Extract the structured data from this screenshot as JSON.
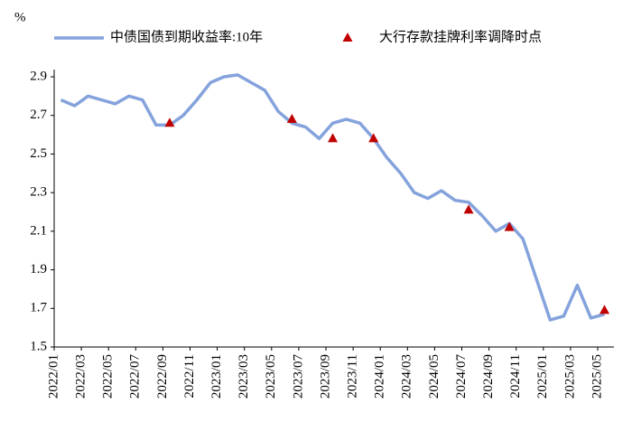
{
  "chart_data": {
    "type": "line",
    "y_label": "%",
    "x": [
      "2022/01",
      "2022/02",
      "2022/03",
      "2022/04",
      "2022/05",
      "2022/06",
      "2022/07",
      "2022/08",
      "2022/09",
      "2022/10",
      "2022/11",
      "2022/12",
      "2023/01",
      "2023/02",
      "2023/03",
      "2023/04",
      "2023/05",
      "2023/06",
      "2023/07",
      "2023/08",
      "2023/09",
      "2023/10",
      "2023/11",
      "2023/12",
      "2024/01",
      "2024/02",
      "2024/03",
      "2024/04",
      "2024/05",
      "2024/06",
      "2024/07",
      "2024/08",
      "2024/09",
      "2024/10",
      "2024/11",
      "2024/12",
      "2025/01",
      "2025/02",
      "2025/03",
      "2025/04",
      "2025/05"
    ],
    "series": [
      {
        "name": "中债国债到期收益率:10年",
        "color": "#84a2dc",
        "values": [
          2.78,
          2.75,
          2.8,
          2.78,
          2.76,
          2.8,
          2.78,
          2.65,
          2.65,
          2.7,
          2.78,
          2.87,
          2.9,
          2.91,
          2.87,
          2.83,
          2.72,
          2.66,
          2.64,
          2.58,
          2.66,
          2.68,
          2.66,
          2.58,
          2.48,
          2.4,
          2.3,
          2.27,
          2.31,
          2.26,
          2.25,
          2.18,
          2.1,
          2.14,
          2.06,
          1.85,
          1.64,
          1.66,
          1.82,
          1.65,
          1.67
        ]
      },
      {
        "name": "大行存款挂牌利率调降时点",
        "color": "#c00000",
        "type": "scatter",
        "x": [
          "2022/09",
          "2023/06",
          "2023/09",
          "2023/12",
          "2024/07",
          "2024/10",
          "2025/05"
        ],
        "values": [
          2.66,
          2.68,
          2.58,
          2.58,
          2.21,
          2.12,
          1.69
        ]
      }
    ],
    "xlim": [
      "2022/01",
      "2025/05"
    ],
    "xticks": [
      "2022/01",
      "2022/03",
      "2022/05",
      "2022/07",
      "2022/09",
      "2022/11",
      "2023/01",
      "2023/03",
      "2023/05",
      "2023/07",
      "2023/09",
      "2023/11",
      "2024/01",
      "2024/03",
      "2024/05",
      "2024/07",
      "2024/09",
      "2024/11",
      "2025/01",
      "2025/03",
      "2025/05"
    ],
    "ylim": [
      1.5,
      2.9
    ],
    "yticks": [
      1.5,
      1.7,
      1.9,
      2.1,
      2.3,
      2.5,
      2.7,
      2.9
    ],
    "legend": "top"
  }
}
